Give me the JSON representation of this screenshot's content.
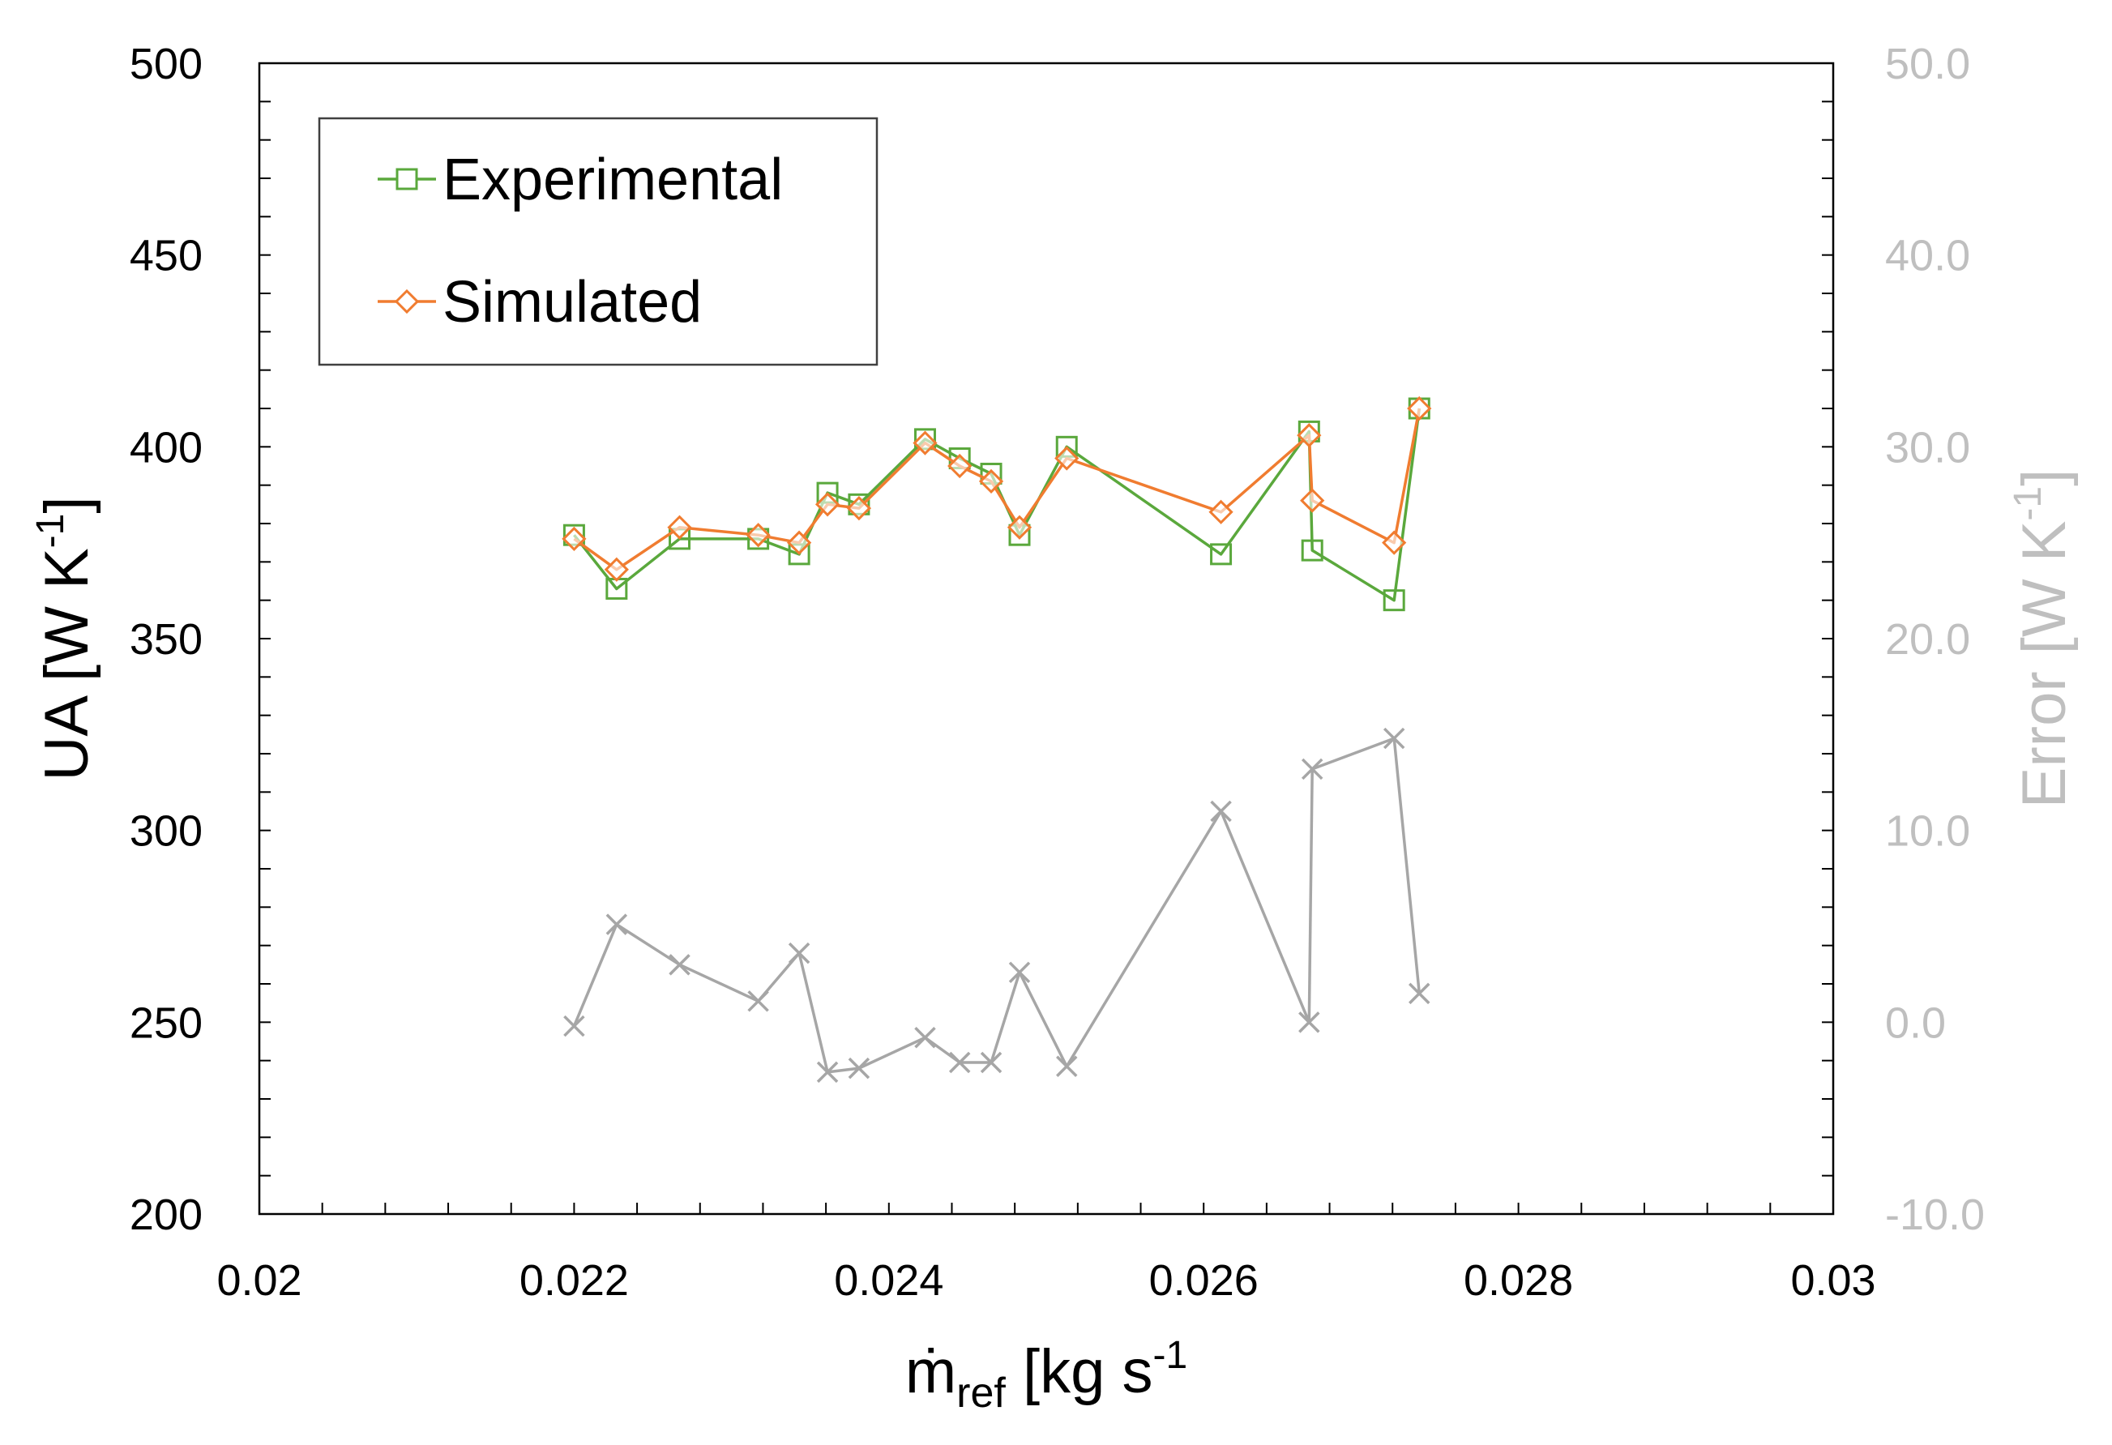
{
  "chart_data": {
    "type": "line",
    "xlabel": {
      "main": "ṁ",
      "sub": "ref",
      "unit_open": " [kg s",
      "sup": "-1",
      "unit_close": "]"
    },
    "ylabel": {
      "main": "UA [W K",
      "sup": "-1",
      "close": "]"
    },
    "y2label": {
      "main": "Error [W K",
      "sup": "-1",
      "close": "]"
    },
    "xlim": [
      0.02,
      0.03
    ],
    "ylim": [
      200,
      500
    ],
    "y2lim": [
      -10,
      50
    ],
    "x_ticks": [
      "0.02",
      "0.022",
      "0.024",
      "0.026",
      "0.028",
      "0.03"
    ],
    "y_ticks": [
      "200",
      "250",
      "300",
      "350",
      "400",
      "450",
      "500"
    ],
    "y2_ticks": [
      "-10.0",
      "0.0",
      "10.0",
      "20.0",
      "30.0",
      "40.0",
      "50.0"
    ],
    "legend_position": "top-left",
    "series": [
      {
        "name": "Experimental",
        "axis": "left",
        "marker": "square",
        "color": "#5aa83c",
        "x": [
          0.022,
          0.02227,
          0.02267,
          0.02317,
          0.02343,
          0.02361,
          0.02381,
          0.02423,
          0.02445,
          0.02465,
          0.02483,
          0.02513,
          0.02611,
          0.02667,
          0.02669,
          0.02721,
          0.02737
        ],
        "y": [
          377,
          363,
          376,
          376,
          372,
          388,
          385,
          402,
          397,
          393,
          377,
          400,
          372,
          404,
          373,
          360,
          410
        ]
      },
      {
        "name": "Simulated",
        "axis": "left",
        "marker": "diamond",
        "color": "#f07c30",
        "x": [
          0.022,
          0.02227,
          0.02267,
          0.02317,
          0.02343,
          0.02361,
          0.02381,
          0.02423,
          0.02445,
          0.02465,
          0.02483,
          0.02513,
          0.02611,
          0.02667,
          0.02669,
          0.02721,
          0.02737
        ],
        "y": [
          376,
          368,
          379,
          377,
          375,
          385,
          384,
          401,
          395,
          391,
          379,
          397,
          383,
          403,
          386,
          375,
          410
        ]
      },
      {
        "name": "Error",
        "axis": "right",
        "marker": "x",
        "color": "#a6a6a6",
        "x": [
          0.022,
          0.02227,
          0.02267,
          0.02317,
          0.02343,
          0.02361,
          0.02381,
          0.02423,
          0.02445,
          0.02465,
          0.02483,
          0.02513,
          0.02611,
          0.02667,
          0.02669,
          0.02721,
          0.02737
        ],
        "y": [
          -0.2,
          5.1,
          3.0,
          1.1,
          3.6,
          -2.6,
          -2.4,
          -0.8,
          -2.1,
          -2.1,
          2.6,
          -2.3,
          11.0,
          0.0,
          13.2,
          14.8,
          1.5
        ]
      }
    ],
    "colors": {
      "axis": "#000000",
      "secondary_axis": "#bfbfbf",
      "legend_border": "#404040"
    }
  }
}
